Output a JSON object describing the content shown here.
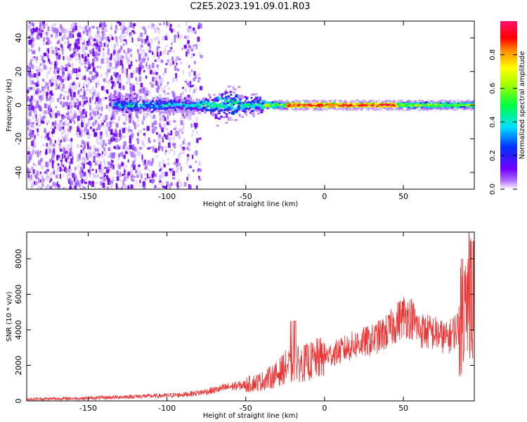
{
  "title": "C2E5.2023.191.09.01.R03",
  "chart_data": [
    {
      "type": "heatmap",
      "xlabel": "Height of straight line (km)",
      "ylabel": "Frequency (Hz)",
      "xlim": [
        -189,
        95
      ],
      "ylim": [
        -50,
        50
      ],
      "xticks": [
        -150,
        -100,
        -50,
        0,
        50
      ],
      "yticks": [
        -40,
        -20,
        0,
        20,
        40
      ],
      "colorbar": {
        "label": "Normalized spectral amplitude",
        "ticks": [
          0.0,
          0.2,
          0.4,
          0.6,
          0.8
        ],
        "range": [
          0.0,
          1.0
        ],
        "colormap": "rainbow (purple-blue-cyan-green-yellow-orange-red-pink)"
      },
      "description_points": [
        {
          "x": -180,
          "freq_spread": 48,
          "amplitude": 0.1
        },
        {
          "x": -130,
          "freq_spread": 48,
          "amplitude": 0.1
        },
        {
          "x": -100,
          "freq_spread": 10,
          "amplitude": 0.25
        },
        {
          "x": -65,
          "freq_spread": 12,
          "amplitude": 0.35
        },
        {
          "x": -30,
          "freq_spread": 3,
          "amplitude": 0.55
        },
        {
          "x": -20,
          "freq_spread": 1.5,
          "amplitude": 0.95
        },
        {
          "x": 0,
          "freq_spread": 1.5,
          "amplitude": 0.95
        },
        {
          "x": 30,
          "freq_spread": 1.5,
          "amplitude": 0.95
        },
        {
          "x": 60,
          "freq_spread": 2,
          "amplitude": 0.55
        },
        {
          "x": 90,
          "freq_spread": 2.5,
          "amplitude": 0.5
        }
      ]
    },
    {
      "type": "line",
      "xlabel": "Height of straight line (km)",
      "ylabel": "SNR (10 * v/v)",
      "xlim": [
        -189,
        95
      ],
      "ylim": [
        0,
        9500
      ],
      "xticks": [
        -150,
        -100,
        -50,
        0,
        50
      ],
      "yticks": [
        0,
        2000,
        4000,
        6000,
        8000
      ],
      "color": "#ee3333",
      "series": [
        {
          "x": [
            -189,
            -150,
            -120,
            -100,
            -90,
            -80,
            -70,
            -60,
            -50,
            -40,
            -30,
            -25,
            -20,
            -10,
            0,
            10,
            20,
            30,
            40,
            50,
            55,
            60,
            70,
            78,
            82,
            86,
            88,
            90,
            92,
            95
          ],
          "y": [
            100,
            150,
            250,
            300,
            350,
            450,
            600,
            800,
            900,
            1100,
            1500,
            1900,
            2000,
            2200,
            2500,
            2800,
            3200,
            3400,
            3900,
            4800,
            4700,
            4000,
            3800,
            3500,
            3900,
            4200,
            6000,
            4500,
            7000,
            4500
          ]
        }
      ]
    }
  ]
}
